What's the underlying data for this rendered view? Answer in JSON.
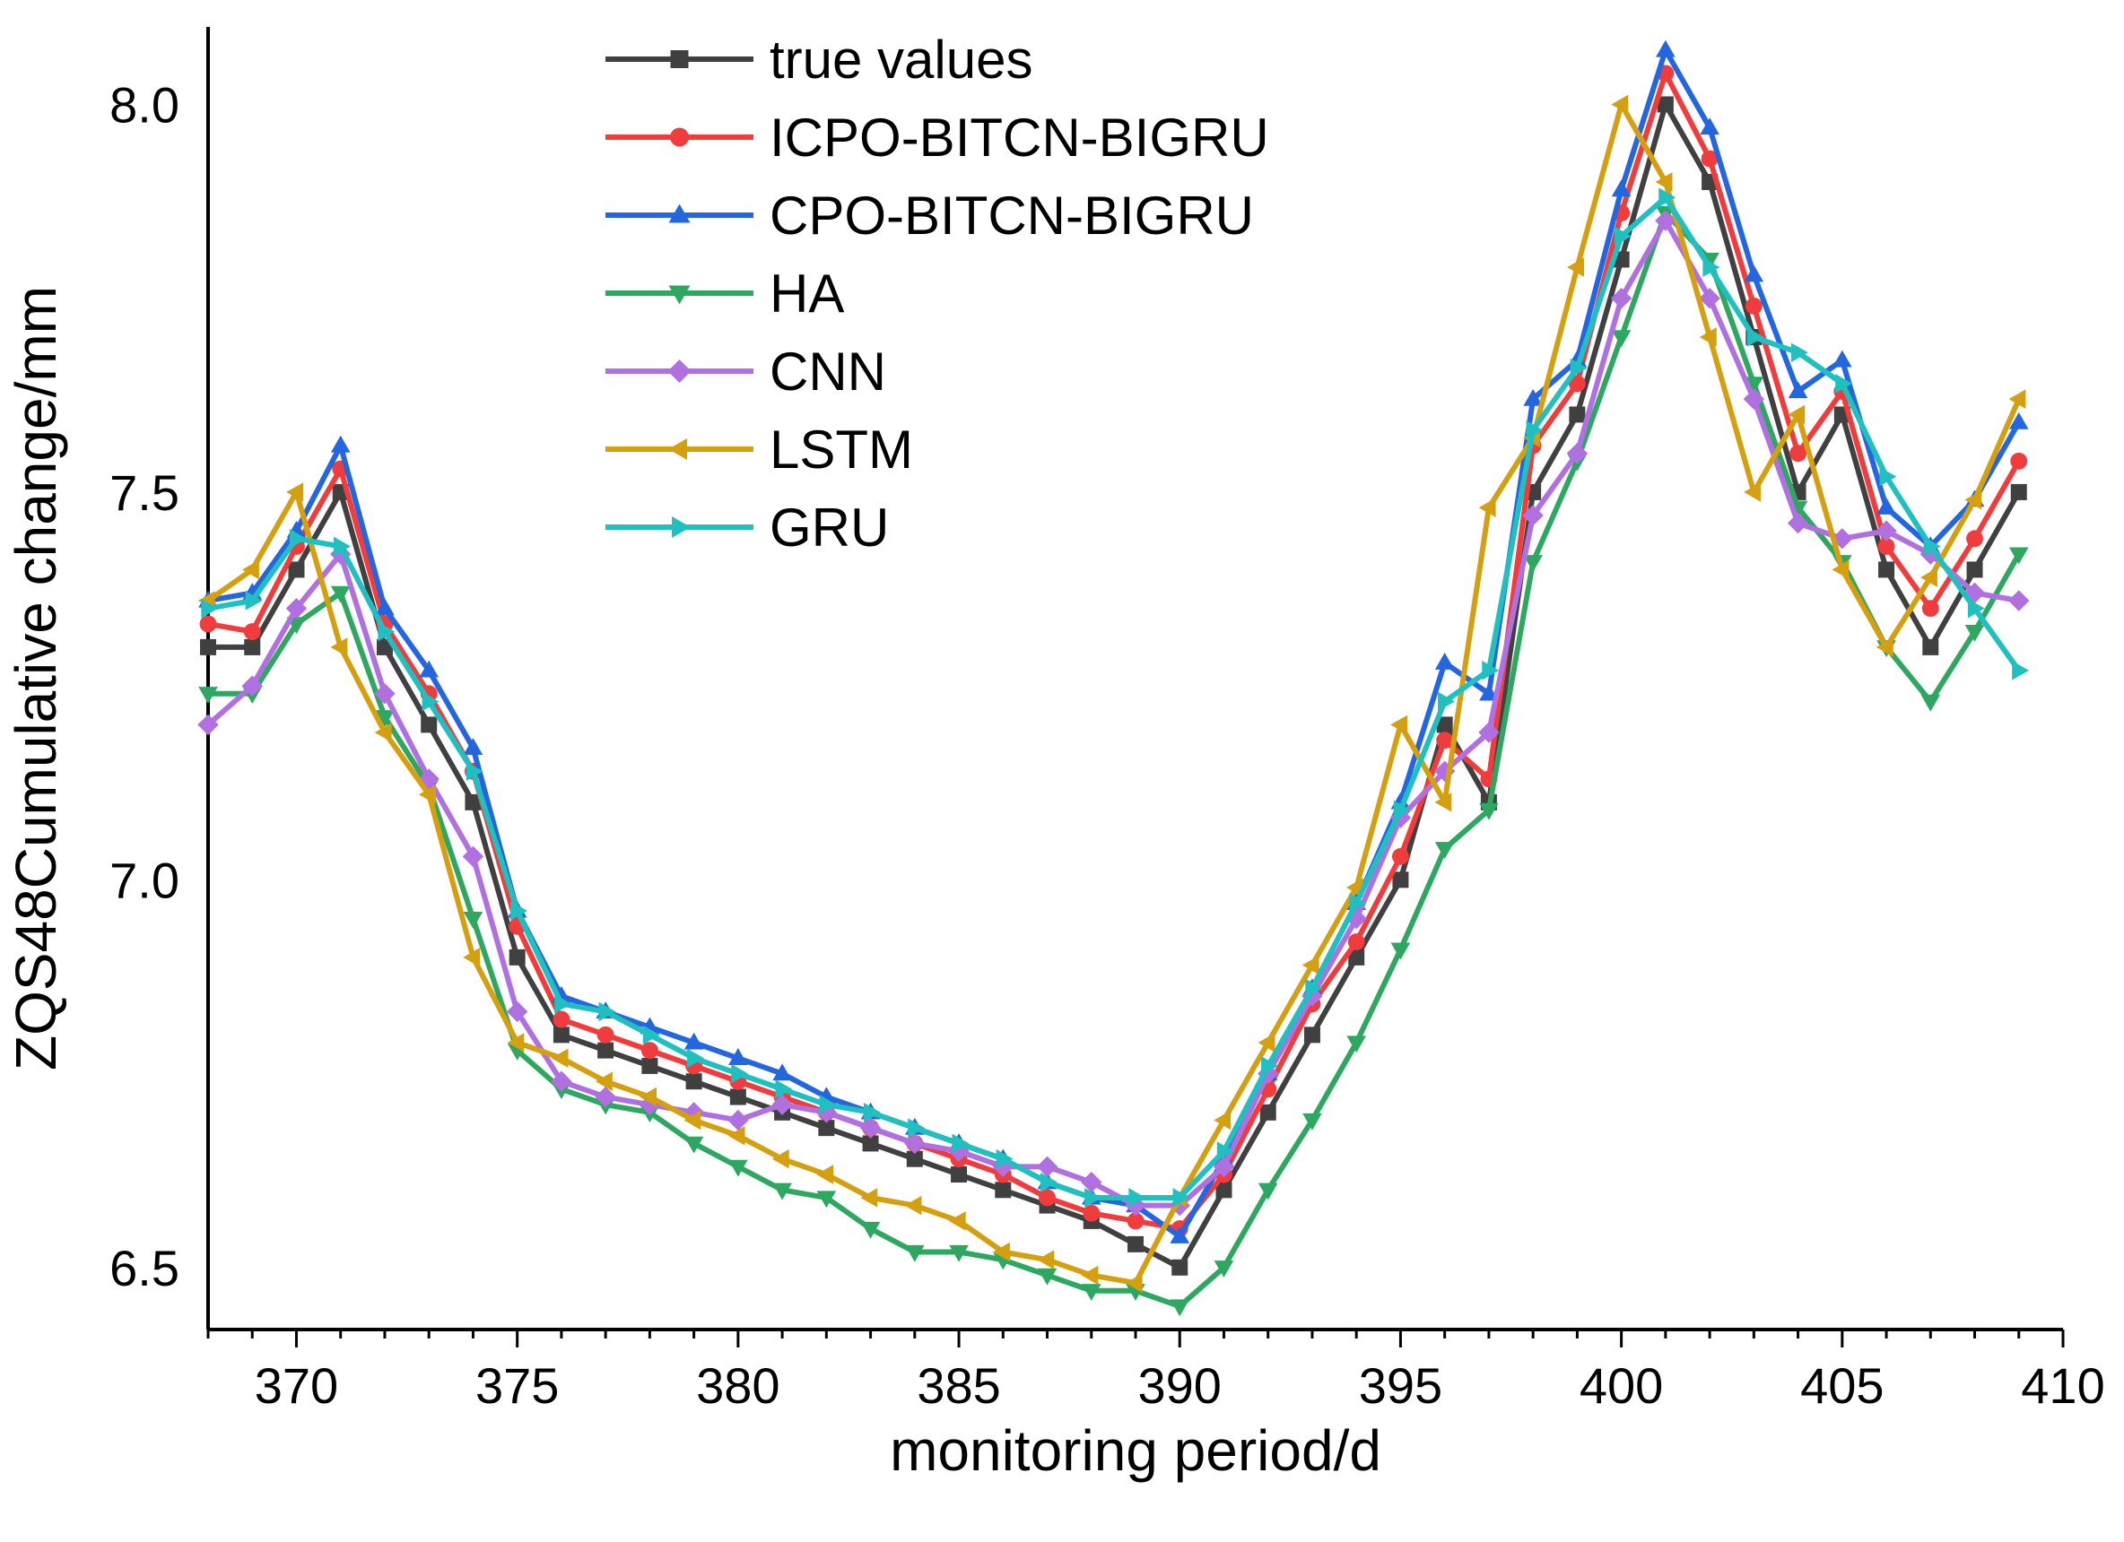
{
  "chart_data": {
    "type": "line",
    "title": "",
    "xlabel": "monitoring period/d",
    "ylabel": "ZQS48Cumulative change/mm",
    "xlim": [
      368,
      410
    ],
    "ylim": [
      6.42,
      8.1
    ],
    "xticks": [
      370,
      375,
      380,
      385,
      390,
      395,
      400,
      405,
      410
    ],
    "yticks": [
      6.5,
      7.0,
      7.5,
      8.0
    ],
    "xtick_labels": [
      "370",
      "375",
      "380",
      "385",
      "390",
      "395",
      "400",
      "405",
      "410"
    ],
    "ytick_labels": [
      "6.5",
      "7.0",
      "7.5",
      "8.0"
    ],
    "legend_position": "top-left",
    "grid": false,
    "x": [
      368,
      369,
      370,
      371,
      372,
      373,
      374,
      375,
      376,
      377,
      378,
      379,
      380,
      381,
      382,
      383,
      384,
      385,
      386,
      387,
      388,
      389,
      390,
      391,
      392,
      393,
      394,
      395,
      396,
      397,
      398,
      399,
      400,
      401,
      402,
      403,
      404,
      405,
      406,
      407,
      408,
      409
    ],
    "series": [
      {
        "name": "true values",
        "color": "#404040",
        "marker": "square",
        "values": [
          7.3,
          7.3,
          7.4,
          7.5,
          7.3,
          7.2,
          7.1,
          6.9,
          6.8,
          6.78,
          6.76,
          6.74,
          6.72,
          6.7,
          6.68,
          6.66,
          6.64,
          6.62,
          6.6,
          6.58,
          6.56,
          6.53,
          6.5,
          6.6,
          6.7,
          6.8,
          6.9,
          7.0,
          7.2,
          7.1,
          7.5,
          7.6,
          7.8,
          8.0,
          7.9,
          7.7,
          7.5,
          7.6,
          7.4,
          7.3,
          7.4,
          7.5
        ]
      },
      {
        "name": "ICPO-BITCN-BIGRU",
        "color": "#f03c3c",
        "marker": "circle",
        "values": [
          7.33,
          7.32,
          7.43,
          7.53,
          7.33,
          7.24,
          7.14,
          6.94,
          6.82,
          6.8,
          6.78,
          6.76,
          6.74,
          6.72,
          6.7,
          6.68,
          6.66,
          6.64,
          6.62,
          6.59,
          6.57,
          6.56,
          6.55,
          6.62,
          6.73,
          6.84,
          6.92,
          7.03,
          7.18,
          7.13,
          7.56,
          7.64,
          7.86,
          8.04,
          7.93,
          7.74,
          7.55,
          7.63,
          7.43,
          7.35,
          7.44,
          7.54
        ]
      },
      {
        "name": "CPO-BITCN-BIGRU",
        "color": "#2366e0",
        "marker": "triangle-up",
        "values": [
          7.36,
          7.37,
          7.45,
          7.56,
          7.35,
          7.27,
          7.17,
          6.96,
          6.85,
          6.83,
          6.81,
          6.79,
          6.77,
          6.75,
          6.72,
          6.7,
          6.68,
          6.66,
          6.64,
          6.61,
          6.59,
          6.58,
          6.54,
          6.64,
          6.75,
          6.86,
          6.97,
          7.1,
          7.28,
          7.24,
          7.62,
          7.67,
          7.89,
          8.07,
          7.97,
          7.78,
          7.63,
          7.67,
          7.48,
          7.43,
          7.49,
          7.59
        ]
      },
      {
        "name": "HA",
        "color": "#2ea860",
        "marker": "triangle-down",
        "values": [
          7.24,
          7.24,
          7.33,
          7.37,
          7.21,
          7.12,
          6.95,
          6.78,
          6.73,
          6.71,
          6.7,
          6.66,
          6.63,
          6.6,
          6.59,
          6.55,
          6.52,
          6.52,
          6.51,
          6.49,
          6.47,
          6.47,
          6.45,
          6.5,
          6.6,
          6.69,
          6.79,
          6.91,
          7.04,
          7.09,
          7.41,
          7.54,
          7.7,
          7.86,
          7.8,
          7.64,
          7.48,
          7.41,
          7.3,
          7.23,
          7.32,
          7.42
        ]
      },
      {
        "name": "CNN",
        "color": "#b070e0",
        "marker": "diamond",
        "values": [
          7.2,
          7.25,
          7.35,
          7.42,
          7.24,
          7.13,
          7.03,
          6.83,
          6.74,
          6.72,
          6.71,
          6.7,
          6.69,
          6.71,
          6.7,
          6.68,
          6.66,
          6.65,
          6.63,
          6.63,
          6.61,
          6.58,
          6.58,
          6.63,
          6.75,
          6.85,
          6.95,
          7.08,
          7.14,
          7.19,
          7.47,
          7.55,
          7.75,
          7.85,
          7.75,
          7.62,
          7.46,
          7.44,
          7.45,
          7.42,
          7.37,
          7.36
        ]
      },
      {
        "name": "LSTM",
        "color": "#d4a010",
        "marker": "triangle-left",
        "values": [
          7.36,
          7.4,
          7.5,
          7.3,
          7.19,
          7.11,
          6.9,
          6.79,
          6.77,
          6.74,
          6.72,
          6.69,
          6.67,
          6.64,
          6.62,
          6.59,
          6.58,
          6.56,
          6.52,
          6.51,
          6.49,
          6.48,
          6.59,
          6.69,
          6.79,
          6.89,
          6.99,
          7.2,
          7.1,
          7.48,
          7.57,
          7.79,
          8.0,
          7.9,
          7.7,
          7.5,
          7.6,
          7.4,
          7.3,
          7.39,
          7.49,
          7.62
        ]
      },
      {
        "name": "GRU",
        "color": "#20c0c0",
        "marker": "triangle-right",
        "values": [
          7.35,
          7.36,
          7.44,
          7.43,
          7.32,
          7.23,
          7.14,
          6.96,
          6.84,
          6.83,
          6.8,
          6.77,
          6.75,
          6.73,
          6.71,
          6.7,
          6.68,
          6.66,
          6.64,
          6.61,
          6.59,
          6.59,
          6.59,
          6.65,
          6.76,
          6.86,
          6.97,
          7.09,
          7.23,
          7.27,
          7.58,
          7.66,
          7.83,
          7.88,
          7.79,
          7.7,
          7.68,
          7.64,
          7.52,
          7.43,
          7.35,
          7.27
        ]
      }
    ]
  }
}
